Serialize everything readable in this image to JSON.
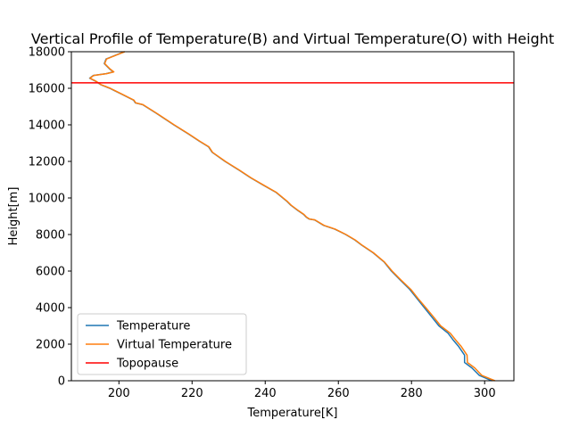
{
  "chart_data": {
    "type": "line",
    "title": "Vertical Profile of Temperature(B) and Virtual Temperature(O) with Height",
    "xlabel": "Temperature[K]",
    "ylabel": "Height[m]",
    "xlim": [
      187,
      308
    ],
    "ylim": [
      0,
      18000
    ],
    "x_ticks": [
      200,
      220,
      240,
      260,
      280,
      300
    ],
    "y_ticks": [
      0,
      2000,
      4000,
      6000,
      8000,
      10000,
      12000,
      14000,
      16000,
      18000
    ],
    "grid": false,
    "legend_position": "lower-left",
    "series": [
      {
        "name": "Temperature",
        "color": "#1f77b4",
        "x": [
          302.0,
          298.5,
          296.5,
          294.5,
          294.5,
          292.8,
          291.5,
          290.0,
          287.5,
          285.5,
          283.5,
          281.5,
          279.5,
          277.0,
          274.5,
          272.5,
          269.5,
          266.5,
          264.5,
          262.0,
          259.0,
          256.0,
          253.5,
          252.0,
          251.2,
          250.5,
          249.0,
          247.0,
          246.0,
          243.0,
          239.5,
          236.0,
          233.0,
          229.0,
          225.5,
          224.5,
          222.0,
          219.0,
          215.0,
          210.5,
          206.5,
          204.5,
          204.0,
          200.5,
          197.5,
          195.0,
          193.5,
          192.0,
          193.0,
          196.5,
          198.5,
          197.5,
          196.0,
          196.5,
          199.0,
          201.5
        ],
        "y": [
          0,
          300,
          700,
          1000,
          1400,
          1900,
          2200,
          2600,
          3000,
          3500,
          4000,
          4500,
          5000,
          5500,
          6000,
          6500,
          7000,
          7400,
          7700,
          8000,
          8300,
          8500,
          8800,
          8850,
          8950,
          9100,
          9300,
          9600,
          9800,
          10300,
          10700,
          11100,
          11500,
          12000,
          12500,
          12800,
          13100,
          13500,
          14000,
          14600,
          15100,
          15200,
          15350,
          15700,
          16000,
          16200,
          16400,
          16550,
          16700,
          16800,
          16900,
          17050,
          17350,
          17600,
          17800,
          18000
        ]
      },
      {
        "name": "Virtual Temperature",
        "color": "#ff7f0e",
        "x": [
          302.8,
          299.2,
          297.3,
          295.3,
          295.2,
          293.5,
          292.2,
          290.6,
          288.0,
          286.0,
          283.9,
          281.8,
          279.8,
          277.2,
          274.7,
          272.6,
          269.6,
          266.6,
          264.6,
          262.1,
          259.1,
          256.1,
          253.6,
          252.1,
          251.3,
          250.6,
          249.1,
          247.1,
          246.1,
          243.1,
          239.6,
          236.1,
          233.1,
          229.1,
          225.6,
          224.6,
          222.1,
          219.1,
          215.1,
          210.6,
          206.6,
          204.6,
          204.1,
          200.6,
          197.6,
          195.1,
          193.6,
          192.1,
          193.1,
          196.6,
          198.6,
          197.6,
          196.1,
          196.6,
          199.1,
          201.6
        ],
        "y": [
          0,
          300,
          700,
          1000,
          1400,
          1900,
          2200,
          2600,
          3000,
          3500,
          4000,
          4500,
          5000,
          5500,
          6000,
          6500,
          7000,
          7400,
          7700,
          8000,
          8300,
          8500,
          8800,
          8850,
          8950,
          9100,
          9300,
          9600,
          9800,
          10300,
          10700,
          11100,
          11500,
          12000,
          12500,
          12800,
          13100,
          13500,
          14000,
          14600,
          15100,
          15200,
          15350,
          15700,
          16000,
          16200,
          16400,
          16550,
          16700,
          16800,
          16900,
          17050,
          17350,
          17600,
          17800,
          18000
        ]
      }
    ],
    "hlines": [
      {
        "name": "Topopause",
        "y": 16300,
        "color": "#ff0000"
      }
    ]
  }
}
